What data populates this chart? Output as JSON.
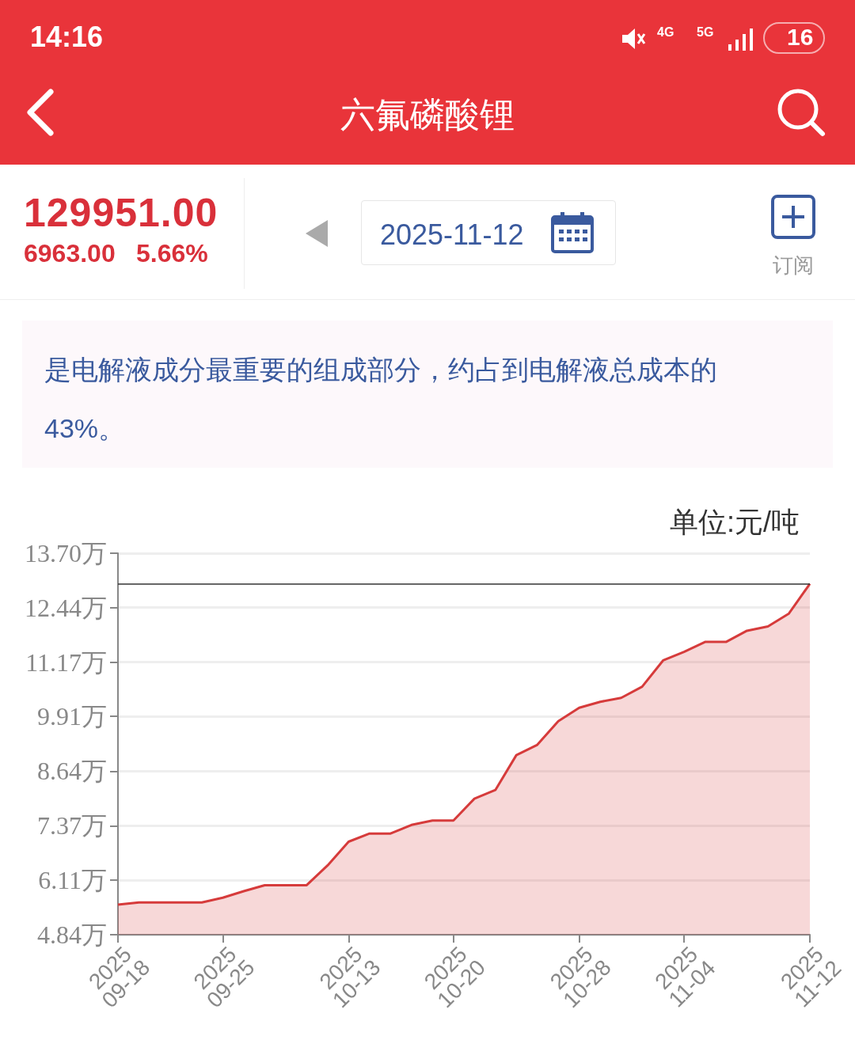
{
  "chart_data": {
    "type": "area",
    "title": "六氟磷酸锂",
    "subtitle": "是电解液成分最重要的组成部分，约占到电解液总成本的43%。",
    "ylabel": "单位:元/吨",
    "annotations": [
      "14:16",
      "4G",
      "5G",
      "16",
      "129951.00",
      "6963.00",
      "5.66%",
      "2025-11-12",
      "订阅"
    ],
    "categories": [
      "2025\n09-18",
      null,
      null,
      null,
      null,
      "2025\n09-25",
      null,
      null,
      null,
      null,
      null,
      "2025\n10-13",
      null,
      null,
      null,
      null,
      "2025\n10-20",
      null,
      null,
      null,
      null,
      null,
      "2025\n10-28",
      null,
      null,
      null,
      null,
      "2025\n11-04",
      null,
      null,
      null,
      null,
      null,
      "2025\n11-12"
    ],
    "series": [
      {
        "color": "#d63b3b",
        "values": [
          5.54,
          5.59,
          5.59,
          5.59,
          5.59,
          5.7,
          5.85,
          5.99,
          5.99,
          5.99,
          6.45,
          7.0,
          7.19,
          7.19,
          7.39,
          7.49,
          7.49,
          8.0,
          8.2,
          9.01,
          9.25,
          9.8,
          10.11,
          10.25,
          10.34,
          10.6,
          11.21,
          11.41,
          11.64,
          11.64,
          11.9,
          12.0,
          12.3,
          12.99
        ]
      }
    ],
    "ylim": [
      4.84,
      13.7
    ],
    "yticks": [
      {
        "value": 4.84,
        "label": "4.84万"
      },
      {
        "value": 6.11,
        "label": "6.11万"
      },
      {
        "value": 7.37,
        "label": "7.37万"
      },
      {
        "value": 8.64,
        "label": "8.64万"
      },
      {
        "value": 9.91,
        "label": "9.91万"
      },
      {
        "value": 11.17,
        "label": "11.17万"
      },
      {
        "value": 12.44,
        "label": "12.44万"
      },
      {
        "value": 13.7,
        "label": "13.70万"
      }
    ],
    "ref_lines": [
      {
        "axis": "y",
        "value": 12.99,
        "color": "#333333"
      }
    ],
    "grid": "y",
    "marker": "none"
  }
}
